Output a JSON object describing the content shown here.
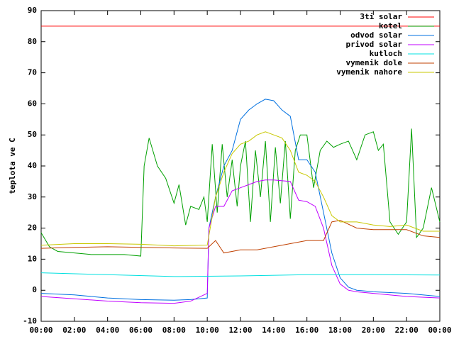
{
  "chart_data": {
    "type": "line",
    "ylabel": "teplota ve C",
    "xlim": [
      0,
      24
    ],
    "ylim": [
      -10,
      90
    ],
    "yticks": [
      -10,
      0,
      10,
      20,
      30,
      40,
      50,
      60,
      70,
      80,
      90
    ],
    "xticks": [
      {
        "value": 0,
        "label": "00:00"
      },
      {
        "value": 2,
        "label": "02:00"
      },
      {
        "value": 4,
        "label": "04:00"
      },
      {
        "value": 6,
        "label": "06:00"
      },
      {
        "value": 8,
        "label": "08:00"
      },
      {
        "value": 10,
        "label": "10:00"
      },
      {
        "value": 12,
        "label": "12:00"
      },
      {
        "value": 14,
        "label": "14:00"
      },
      {
        "value": 16,
        "label": "16:00"
      },
      {
        "value": 18,
        "label": "18:00"
      },
      {
        "value": 20,
        "label": "20:00"
      },
      {
        "value": 22,
        "label": "22:00"
      },
      {
        "value": 24,
        "label": "00:00"
      }
    ],
    "legend": "top-right",
    "series": [
      {
        "name": "3ti solar",
        "color": "#ff0000",
        "x": [
          0,
          24
        ],
        "values": [
          85,
          85
        ]
      },
      {
        "name": "kotel",
        "color": "#00a000",
        "x": [
          0,
          0.5,
          1,
          2,
          3,
          4,
          5,
          6,
          6.2,
          6.5,
          7,
          7.5,
          8,
          8.3,
          8.7,
          9,
          9.5,
          9.8,
          10,
          10.3,
          10.6,
          10.9,
          11.2,
          11.5,
          11.8,
          12,
          12.3,
          12.6,
          12.9,
          13.2,
          13.5,
          13.8,
          14.1,
          14.4,
          14.7,
          15,
          15.3,
          15.6,
          16,
          16.4,
          16.8,
          17.2,
          17.6,
          18,
          18.5,
          19,
          19.5,
          20,
          20.3,
          20.6,
          21,
          21.5,
          22,
          22.3,
          22.6,
          23,
          23.5,
          24
        ],
        "values": [
          18.5,
          14,
          12.5,
          12,
          11.5,
          11.5,
          11.5,
          11,
          40,
          49,
          40,
          36,
          28,
          34,
          21,
          27,
          26,
          30,
          22,
          47,
          25,
          47,
          30,
          42,
          27,
          40,
          48,
          22,
          45,
          30,
          48,
          22,
          46,
          28,
          48,
          23,
          45,
          50,
          50,
          33,
          45,
          48,
          46,
          47,
          48,
          42,
          50,
          51,
          45,
          47,
          22,
          18,
          22,
          52,
          17,
          20,
          33,
          22
        ]
      },
      {
        "name": "odvod solar",
        "color": "#0070e0",
        "x": [
          0,
          2,
          4,
          6,
          8,
          9,
          10,
          10.1,
          10.5,
          11,
          11.5,
          12,
          12.5,
          13,
          13.5,
          14,
          14.5,
          15,
          15.5,
          16,
          16.5,
          17,
          17.5,
          18,
          18.5,
          19,
          20,
          22,
          24
        ],
        "values": [
          -1,
          -1.5,
          -2.5,
          -3,
          -3.2,
          -3,
          -2.5,
          20,
          30,
          40,
          45,
          55,
          58,
          60,
          61.5,
          61,
          58,
          56,
          42,
          42,
          38,
          25,
          12,
          4,
          1,
          0,
          -0.5,
          -1,
          -2
        ]
      },
      {
        "name": "privod solar",
        "color": "#c000ff",
        "x": [
          0,
          4,
          6,
          8,
          9,
          10,
          10.1,
          10.5,
          11,
          11.5,
          12,
          12.5,
          13,
          13.5,
          14,
          15,
          15.5,
          16,
          16.5,
          17,
          17.5,
          18,
          18.5,
          19,
          20,
          22,
          24
        ],
        "values": [
          -2,
          -3.5,
          -4,
          -4.2,
          -3.5,
          -1,
          20,
          27,
          27,
          32,
          33,
          34,
          35,
          35.5,
          35.5,
          35,
          29,
          28.5,
          27,
          20,
          8,
          2,
          0,
          -0.5,
          -1,
          -2,
          -2.5
        ]
      },
      {
        "name": "kutloch",
        "color": "#00e0e0",
        "x": [
          0,
          4,
          8,
          12,
          16,
          20,
          24
        ],
        "values": [
          5.6,
          5,
          4.4,
          4.6,
          5,
          5,
          4.9
        ]
      },
      {
        "name": "vymenik dole",
        "color": "#c04000",
        "x": [
          0,
          2,
          4,
          6,
          8,
          10,
          10.5,
          11,
          12,
          13,
          14,
          15,
          16,
          17,
          17.5,
          18,
          19,
          20,
          22,
          23,
          24
        ],
        "values": [
          13.5,
          13.8,
          14,
          13.8,
          13.6,
          13.5,
          16,
          12,
          13,
          13,
          14,
          15,
          16,
          16,
          22,
          22.5,
          20,
          19.5,
          19.5,
          17.5,
          17
        ]
      },
      {
        "name": "vymenik nahore",
        "color": "#c8c800",
        "x": [
          0,
          2,
          4,
          6,
          8,
          10,
          10.5,
          11,
          11.5,
          12,
          12.5,
          13,
          13.5,
          14,
          14.5,
          15,
          15.5,
          16,
          16.5,
          17,
          17.5,
          18,
          19,
          20,
          21,
          22,
          23,
          24
        ],
        "values": [
          14.5,
          15,
          15,
          14.8,
          14.3,
          14.5,
          30,
          38,
          44,
          47,
          48,
          50,
          51,
          50,
          49,
          45,
          38,
          37,
          35,
          30,
          24,
          22,
          22,
          21,
          20.5,
          21,
          19,
          19
        ]
      }
    ]
  }
}
